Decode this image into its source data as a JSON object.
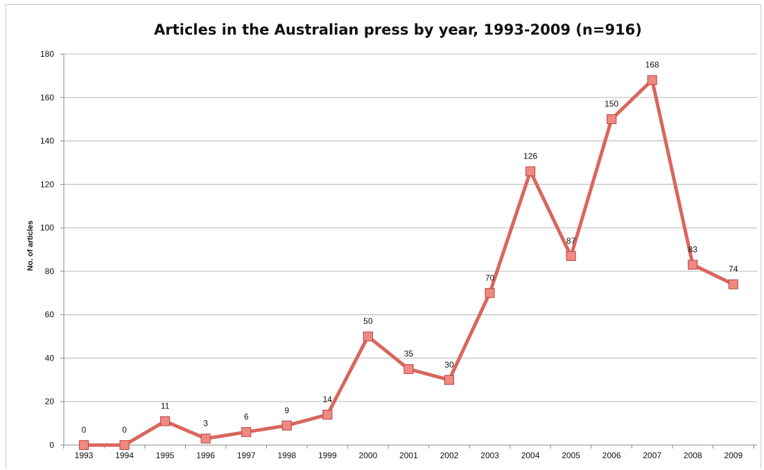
{
  "chart_data": {
    "type": "line",
    "title": "Articles in the Australian press by year, 1993-2009 (n=916)",
    "xlabel": "",
    "ylabel": "No. of articles",
    "categories": [
      "1993",
      "1994",
      "1995",
      "1996",
      "1997",
      "1998",
      "1999",
      "2000",
      "2001",
      "2002",
      "2003",
      "2004",
      "2005",
      "2006",
      "2007",
      "2008",
      "2009"
    ],
    "series": [
      {
        "values": [
          0,
          0,
          11,
          3,
          6,
          9,
          14,
          50,
          35,
          30,
          70,
          126,
          87,
          150,
          168,
          83,
          74
        ],
        "data_labels": [
          "0",
          "0",
          "11",
          "3",
          "6",
          "9",
          "14",
          "50",
          "35",
          "30",
          "70",
          "126",
          "87",
          "150",
          "168",
          "83",
          "74"
        ],
        "line_color": "#d9665d",
        "marker_fill": "#ef8a82",
        "marker_stroke": "#c0504d",
        "marker": "square"
      }
    ],
    "ylim": [
      0,
      180
    ],
    "y_ticks": [
      0,
      20,
      40,
      60,
      80,
      100,
      120,
      140,
      160,
      180
    ],
    "y_tick_labels": [
      "0",
      "20",
      "40",
      "60",
      "80",
      "100",
      "120",
      "140",
      "160",
      "180"
    ],
    "grid": true,
    "legend": "none"
  }
}
